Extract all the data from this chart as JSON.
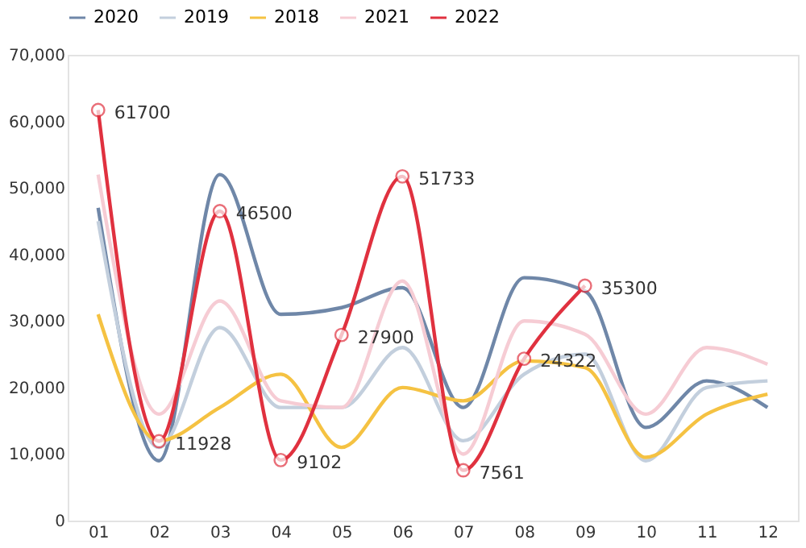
{
  "chart_data": {
    "type": "line",
    "categories": [
      "01",
      "02",
      "03",
      "04",
      "05",
      "06",
      "07",
      "08",
      "09",
      "10",
      "11",
      "12"
    ],
    "series": [
      {
        "name": "2020",
        "color": "#6f87a8",
        "values": [
          47000,
          9000,
          52000,
          31000,
          32000,
          35000,
          17000,
          36500,
          34500,
          14000,
          21000,
          17000
        ]
      },
      {
        "name": "2019",
        "color": "#c3cfdd",
        "values": [
          45000,
          11000,
          29000,
          17000,
          17000,
          26000,
          12000,
          22000,
          25000,
          9000,
          20000,
          21000
        ]
      },
      {
        "name": "2018",
        "color": "#f5c242",
        "values": [
          31000,
          12000,
          17000,
          22000,
          11000,
          20000,
          18000,
          24000,
          23000,
          9500,
          16000,
          19000
        ]
      },
      {
        "name": "2021",
        "color": "#f6ccd4",
        "values": [
          52000,
          16000,
          33000,
          18000,
          17000,
          36000,
          10000,
          30000,
          28000,
          16000,
          26000,
          23500
        ]
      },
      {
        "name": "2022",
        "color": "#e0313f",
        "marker": "circle",
        "data_labels": true,
        "values": [
          61700,
          11928,
          46500,
          9102,
          27900,
          51733,
          7561,
          24322,
          35300,
          null,
          null,
          null
        ]
      }
    ],
    "ylim": [
      0,
      70000
    ],
    "yticks": [
      0,
      {
        "value": 10000,
        "label": "10,000"
      },
      {
        "value": 20000,
        "label": "20,000"
      },
      {
        "value": 30000,
        "label": "30,000"
      },
      {
        "value": 40000,
        "label": "40,000"
      },
      {
        "value": 50000,
        "label": "50,000"
      },
      {
        "value": 60000,
        "label": "60,000"
      },
      {
        "value": 70000,
        "label": "70,000"
      }
    ],
    "grid": false,
    "legend": "top"
  }
}
